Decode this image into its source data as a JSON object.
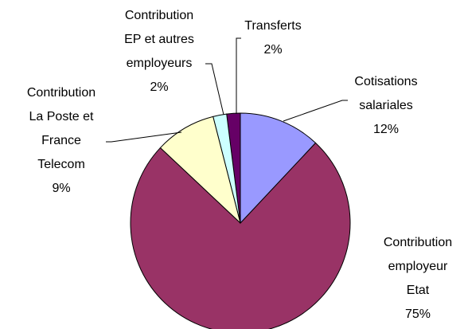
{
  "chart_data": {
    "type": "pie",
    "categories": [
      "Cotisations salariales",
      "Contribution employeur Etat",
      "Contribution La Poste et France Telecom",
      "Contribution EP et autres employeurs",
      "Transferts"
    ],
    "values": [
      12,
      75,
      9,
      2,
      2
    ],
    "value_labels": [
      "12%",
      "75%",
      "9%",
      "2%",
      "2%"
    ],
    "colors": [
      "#9999ff",
      "#993366",
      "#ffffcc",
      "#ccffff",
      "#660066"
    ]
  }
}
